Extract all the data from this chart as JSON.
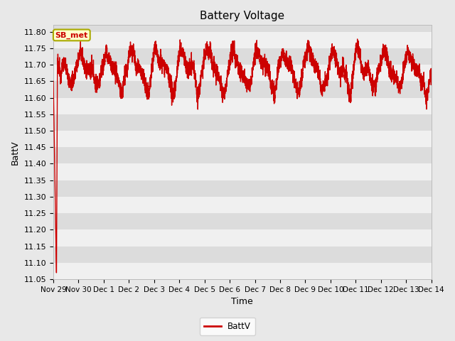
{
  "title": "Battery Voltage",
  "xlabel": "Time",
  "ylabel": "BattV",
  "legend_label": "BattV",
  "annotation_text": "SB_met",
  "ylim": [
    11.05,
    11.82
  ],
  "yticks": [
    11.05,
    11.1,
    11.15,
    11.2,
    11.25,
    11.3,
    11.35,
    11.4,
    11.45,
    11.5,
    11.55,
    11.6,
    11.65,
    11.7,
    11.75,
    11.8
  ],
  "xtick_labels": [
    "Nov 29",
    "Nov 30",
    "Dec 1",
    "Dec 2",
    "Dec 3",
    "Dec 4",
    "Dec 5",
    "Dec 6",
    "Dec 7",
    "Dec 8",
    "Dec 9",
    "Dec 10",
    "Dec 11",
    "Dec 12",
    "Dec 13",
    "Dec 14"
  ],
  "line_color": "#cc0000",
  "line_width": 1.0,
  "bg_color": "#e8e8e8",
  "band_color_light": "#f0f0f0",
  "band_color_dark": "#dcdcdc",
  "annotation_bg": "#ffffcc",
  "annotation_border": "#aaaa00",
  "annotation_text_color": "#cc0000",
  "title_fontsize": 11,
  "axis_label_fontsize": 9,
  "tick_fontsize": 8
}
